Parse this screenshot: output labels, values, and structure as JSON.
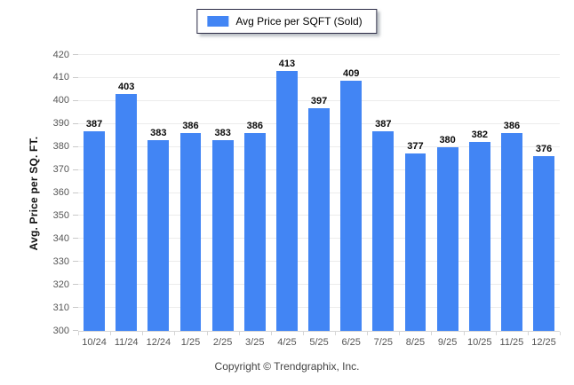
{
  "legend": {
    "label": "Avg Price per SQFT (Sold)",
    "swatch_color": "#4285f4"
  },
  "chart_data": {
    "type": "bar",
    "title": "",
    "series_name": "Avg Price per SQFT (Sold)",
    "categories": [
      "10/24",
      "11/24",
      "12/24",
      "1/25",
      "2/25",
      "3/25",
      "4/25",
      "5/25",
      "6/25",
      "7/25",
      "8/25",
      "9/25",
      "10/25",
      "11/25",
      "12/25"
    ],
    "values": [
      387,
      403,
      383,
      386,
      383,
      386,
      413,
      397,
      409,
      387,
      377,
      380,
      382,
      386,
      376
    ],
    "xlabel": "",
    "ylabel": "Avg. Price per SQ. FT.",
    "ylim": [
      300,
      420
    ],
    "ytick_step": 10,
    "grid": true,
    "legend_position": "top-center",
    "bar_color": "#4285f4",
    "gridline_color": "#ececec"
  },
  "footer": {
    "copyright": "Copyright © Trendgraphix, Inc."
  }
}
